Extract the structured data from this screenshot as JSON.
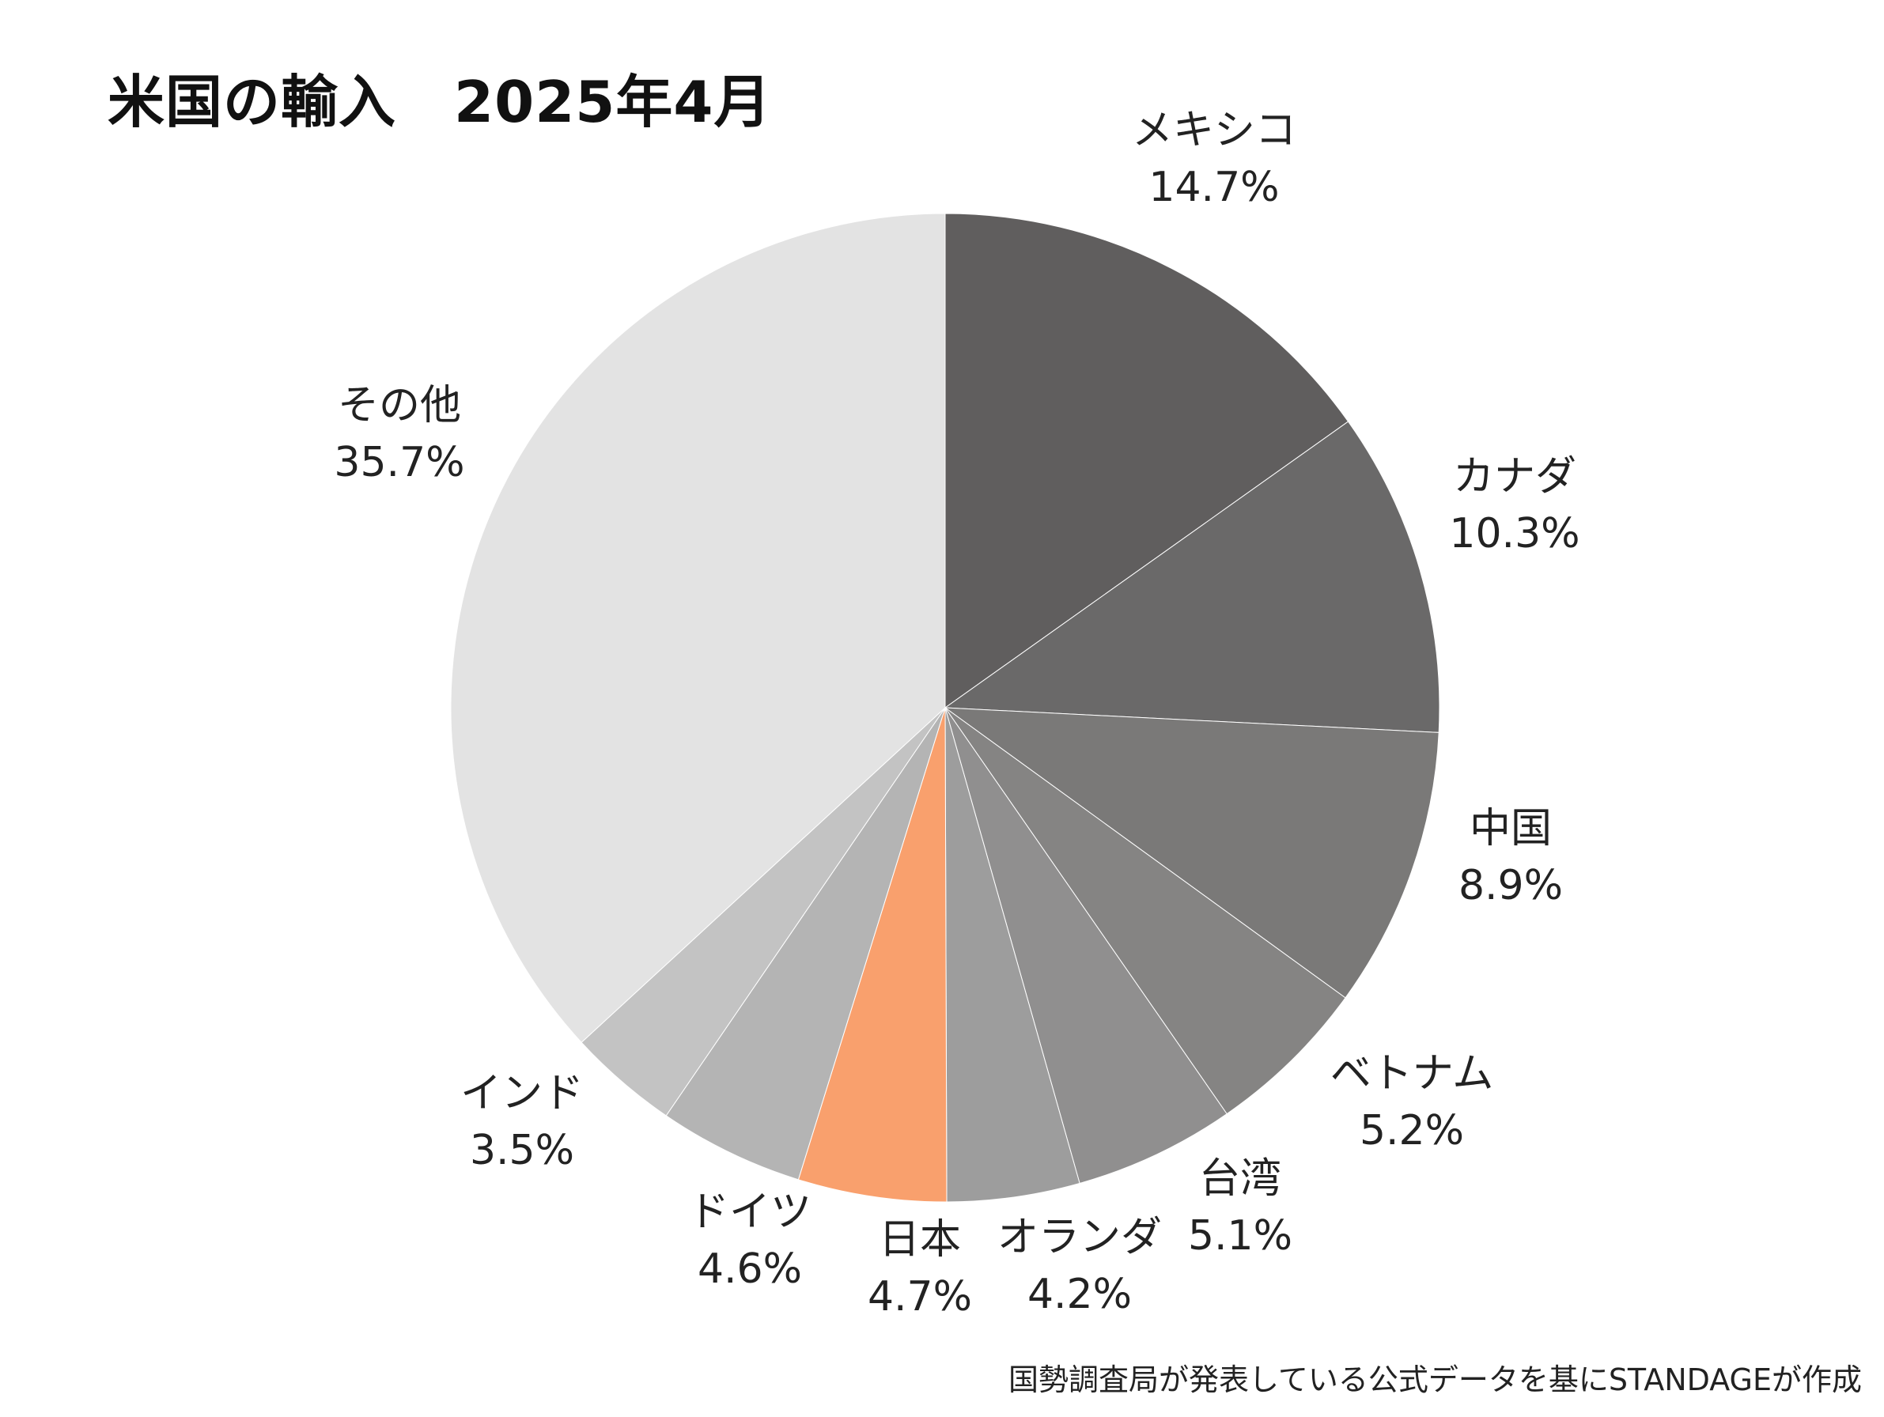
{
  "chart_data": {
    "type": "pie",
    "title": "米国の輸入　2025年4月",
    "unit": "%",
    "slices": [
      {
        "label": "メキシコ",
        "value": 14.7,
        "value_label": "14.7%",
        "color": "#605e5e"
      },
      {
        "label": "カナダ",
        "value": 10.3,
        "value_label": "10.3%",
        "color": "#6a6969"
      },
      {
        "label": "中国",
        "value": 8.9,
        "value_label": "8.9%",
        "color": "#7a7978"
      },
      {
        "label": "ベトナム",
        "value": 5.2,
        "value_label": "5.2%",
        "color": "#858483"
      },
      {
        "label": "台湾",
        "value": 5.1,
        "value_label": "5.1%",
        "color": "#908f8f"
      },
      {
        "label": "オランダ",
        "value": 4.2,
        "value_label": "4.2%",
        "color": "#9d9d9d"
      },
      {
        "label": "日本",
        "value": 4.7,
        "value_label": "4.7%",
        "color": "#f9a06d"
      },
      {
        "label": "ドイツ",
        "value": 4.6,
        "value_label": "4.6%",
        "color": "#b4b4b4"
      },
      {
        "label": "インド",
        "value": 3.5,
        "value_label": "3.5%",
        "color": "#c3c3c3"
      },
      {
        "label": "その他",
        "value": 35.7,
        "value_label": "35.7%",
        "color": "#e3e3e3"
      }
    ],
    "start_angle": "12 o'clock",
    "direction": "clockwise",
    "legend": "none (labels outside slices)"
  },
  "source_note": "国勢調査局が発表している公式データを基にSTANDAGEが作成"
}
